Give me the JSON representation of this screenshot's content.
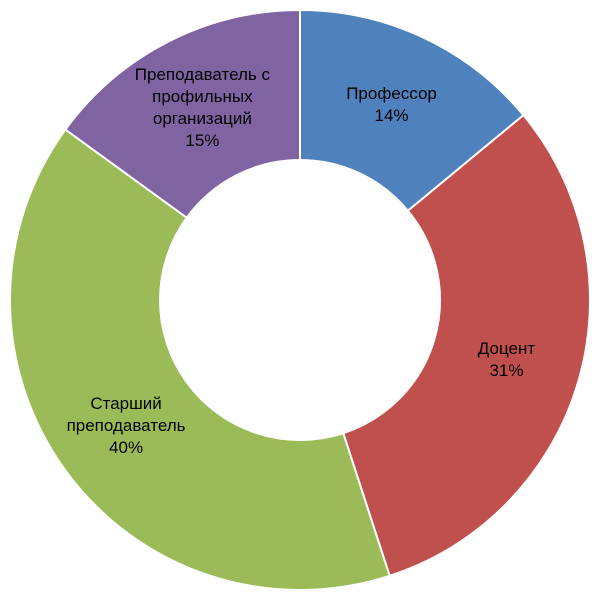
{
  "chart_data": {
    "type": "donut",
    "categories": [
      "Профессор",
      "Доцент",
      "Старший преподаватель",
      "Преподаватель с профильных организаций"
    ],
    "values": [
      14,
      31,
      40,
      15
    ],
    "value_labels": [
      "14%",
      "31%",
      "40%",
      "15%"
    ],
    "colors": [
      "#4f81bd",
      "#c0504d",
      "#9bbb59",
      "#8064a2"
    ]
  }
}
